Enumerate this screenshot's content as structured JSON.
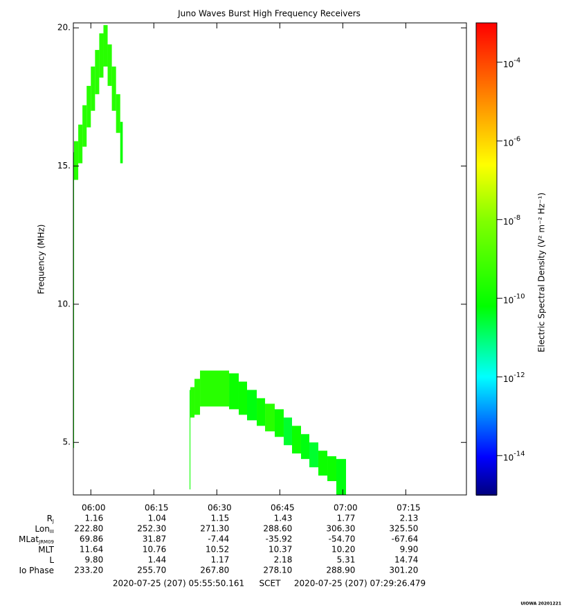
{
  "chart_data": {
    "type": "spectrogram",
    "title": "Juno Waves Burst High Frequency Receivers",
    "y_label": "Frequency (MHz)",
    "xlim": [
      355.836,
      449.441
    ],
    "xticks": [
      {
        "value": 360,
        "label": "06:00"
      },
      {
        "value": 375,
        "label": "06:15"
      },
      {
        "value": 390,
        "label": "06:30"
      },
      {
        "value": 405,
        "label": "06:45"
      },
      {
        "value": 420,
        "label": "07:00"
      },
      {
        "value": 435,
        "label": "07:15"
      }
    ],
    "ylim": [
      3.1,
      20.18
    ],
    "yticks": [
      {
        "value": 5,
        "label": "5."
      },
      {
        "value": 10,
        "label": "10."
      },
      {
        "value": 15,
        "label": "15."
      },
      {
        "value": 20,
        "label": "20."
      }
    ],
    "colorbar": {
      "label": "Electric Spectral Density (V² m⁻² Hz⁻¹)",
      "log": true,
      "clim": [
        1e-15,
        0.001
      ],
      "ticks": [
        {
          "value": 0.0001,
          "label": "10",
          "sup": "-4"
        },
        {
          "value": 1e-06,
          "label": "10",
          "sup": "-6"
        },
        {
          "value": 1e-08,
          "label": "10",
          "sup": "-8"
        },
        {
          "value": 1e-10,
          "label": "10",
          "sup": "-10"
        },
        {
          "value": 1e-12,
          "label": "10",
          "sup": "-12"
        },
        {
          "value": 1e-14,
          "label": "10",
          "sup": "-14"
        }
      ],
      "colormap": [
        {
          "stop": 0,
          "color": "#00007f"
        },
        {
          "stop": 0.08,
          "color": "#0000ff"
        },
        {
          "stop": 0.25,
          "color": "#00ffff"
        },
        {
          "stop": 0.4,
          "color": "#00ff00"
        },
        {
          "stop": 0.58,
          "color": "#80ff00"
        },
        {
          "stop": 0.7,
          "color": "#ffff00"
        },
        {
          "stop": 0.85,
          "color": "#ff8000"
        },
        {
          "stop": 1,
          "color": "#ff0000"
        }
      ]
    },
    "cells": [
      {
        "t": [
          355.84,
          356.0
        ],
        "f": [
          4.8,
          15.5
        ],
        "z": 1e-10
      },
      {
        "t": [
          356.0,
          357.0
        ],
        "f": [
          14.5,
          15.9
        ],
        "z": 3e-10
      },
      {
        "t": [
          357.0,
          358.0
        ],
        "f": [
          15.1,
          16.5
        ],
        "z": 3e-10
      },
      {
        "t": [
          358.0,
          359.0
        ],
        "f": [
          15.7,
          17.2
        ],
        "z": 3e-10
      },
      {
        "t": [
          359.0,
          360.0
        ],
        "f": [
          16.4,
          17.9
        ],
        "z": 3e-10
      },
      {
        "t": [
          360.0,
          361.0
        ],
        "f": [
          17.0,
          18.6
        ],
        "z": 3e-10
      },
      {
        "t": [
          361.0,
          362.0
        ],
        "f": [
          17.6,
          19.2
        ],
        "z": 3e-10
      },
      {
        "t": [
          362.0,
          363.0
        ],
        "f": [
          18.2,
          19.8
        ],
        "z": 3e-10
      },
      {
        "t": [
          363.0,
          364.0
        ],
        "f": [
          18.6,
          20.1
        ],
        "z": 3e-10
      },
      {
        "t": [
          364.0,
          365.0
        ],
        "f": [
          17.9,
          19.4
        ],
        "z": 3e-10
      },
      {
        "t": [
          365.0,
          366.0
        ],
        "f": [
          17.0,
          18.6
        ],
        "z": 3e-10
      },
      {
        "t": [
          366.0,
          367.0
        ],
        "f": [
          16.2,
          17.6
        ],
        "z": 3e-10
      },
      {
        "t": [
          367.0,
          367.6
        ],
        "f": [
          15.1,
          16.6
        ],
        "z": 1e-10
      },
      {
        "t": [
          383.52,
          383.7
        ],
        "f": [
          3.3,
          6.9
        ],
        "z": 1e-10
      },
      {
        "t": [
          383.7,
          384.68
        ],
        "f": [
          5.9,
          7.0
        ],
        "z": 3e-10
      },
      {
        "t": [
          384.68,
          386.0
        ],
        "f": [
          6.0,
          7.3
        ],
        "z": 3e-10
      },
      {
        "t": [
          386.0,
          392.92
        ],
        "f": [
          6.3,
          7.6
        ],
        "z": 3e-10
      },
      {
        "t": [
          392.92,
          395.22
        ],
        "f": [
          6.2,
          7.5
        ],
        "z": 1e-10
      },
      {
        "t": [
          395.22,
          397.2
        ],
        "f": [
          6.0,
          7.2
        ],
        "z": 1e-10
      },
      {
        "t": [
          397.2,
          399.51
        ],
        "f": [
          5.8,
          6.9
        ],
        "z": 5e-11
      },
      {
        "t": [
          399.51,
          401.49
        ],
        "f": [
          5.6,
          6.6
        ],
        "z": 1e-10
      },
      {
        "t": [
          401.49,
          403.79
        ],
        "f": [
          5.4,
          6.4
        ],
        "z": 3e-10
      },
      {
        "t": [
          403.79,
          405.93
        ],
        "f": [
          5.2,
          6.2
        ],
        "z": 1e-10
      },
      {
        "t": [
          405.93,
          407.91
        ],
        "f": [
          4.9,
          5.9
        ],
        "z": 3e-11
      },
      {
        "t": [
          407.91,
          410.05
        ],
        "f": [
          4.6,
          5.6
        ],
        "z": 1e-10
      },
      {
        "t": [
          410.05,
          412.03
        ],
        "f": [
          4.4,
          5.3
        ],
        "z": 5e-11
      },
      {
        "t": [
          412.03,
          414.17
        ],
        "f": [
          4.1,
          5.0
        ],
        "z": 3e-11
      },
      {
        "t": [
          414.17,
          416.32
        ],
        "f": [
          3.8,
          4.7
        ],
        "z": 1e-10
      },
      {
        "t": [
          416.32,
          418.46
        ],
        "f": [
          3.6,
          4.5
        ],
        "z": 1e-10
      },
      {
        "t": [
          418.46,
          420.77
        ],
        "f": [
          3.1,
          4.4
        ],
        "z": 5e-11
      }
    ],
    "ephemeris": [
      {
        "label": "R",
        "sub": "J",
        "values": [
          "1.16",
          "1.04",
          "1.15",
          "1.43",
          "1.77",
          "2.13"
        ]
      },
      {
        "label": "Lon",
        "sub": "III",
        "values": [
          "222.80",
          "252.30",
          "271.30",
          "288.60",
          "306.30",
          "325.50"
        ]
      },
      {
        "label": "MLat",
        "sub": "JRM09",
        "values": [
          "69.86",
          "31.87",
          "-7.44",
          "-35.92",
          "-54.70",
          "-67.64"
        ]
      },
      {
        "label": "MLT",
        "values": [
          "11.64",
          "10.76",
          "10.52",
          "10.37",
          "10.20",
          "9.90"
        ]
      },
      {
        "label": "L",
        "values": [
          "9.80",
          "1.44",
          "1.17",
          "2.18",
          "5.31",
          "14.74"
        ]
      },
      {
        "label": "Io Phase",
        "values": [
          "233.20",
          "255.70",
          "267.80",
          "278.10",
          "288.90",
          "301.20"
        ]
      }
    ],
    "start_time": "2020-07-25 (207) 05:55:50.161",
    "time_system": "SCET",
    "end_time": "2020-07-25 (207) 07:29:26.479",
    "stamp": "UIOWA 20201221"
  }
}
